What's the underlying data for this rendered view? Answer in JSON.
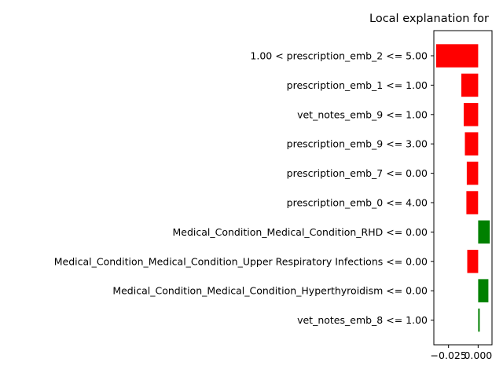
{
  "chart_data": {
    "type": "bar",
    "orientation": "horizontal",
    "title": "Local explanation for",
    "xlabel": "",
    "ylabel": "",
    "grid": false,
    "xlim": [
      -0.0374,
      0.0117
    ],
    "xticks": [
      -0.025,
      0.0
    ],
    "xtick_labels": [
      "−0.025",
      "0.000"
    ],
    "positive_color": "#008000",
    "negative_color": "#ff0000",
    "categories": [
      "1.00 < prescription_emb_2 <= 5.00",
      "prescription_emb_1 <= 1.00",
      "vet_notes_emb_9 <= 1.00",
      "prescription_emb_9 <= 3.00",
      "prescription_emb_7 <= 0.00",
      "prescription_emb_0 <= 4.00",
      "Medical_Condition_Medical_Condition_RHD <= 0.00",
      "Medical_Condition_Medical_Condition_Upper Respiratory Infections <= 0.00",
      "Medical_Condition_Medical_Condition_Hyperthyroidism <= 0.00",
      "vet_notes_emb_8 <= 1.00"
    ],
    "values": [
      -0.0355,
      -0.0142,
      -0.0122,
      -0.0112,
      -0.0096,
      -0.0099,
      0.0098,
      -0.0092,
      0.0086,
      0.0013
    ]
  }
}
